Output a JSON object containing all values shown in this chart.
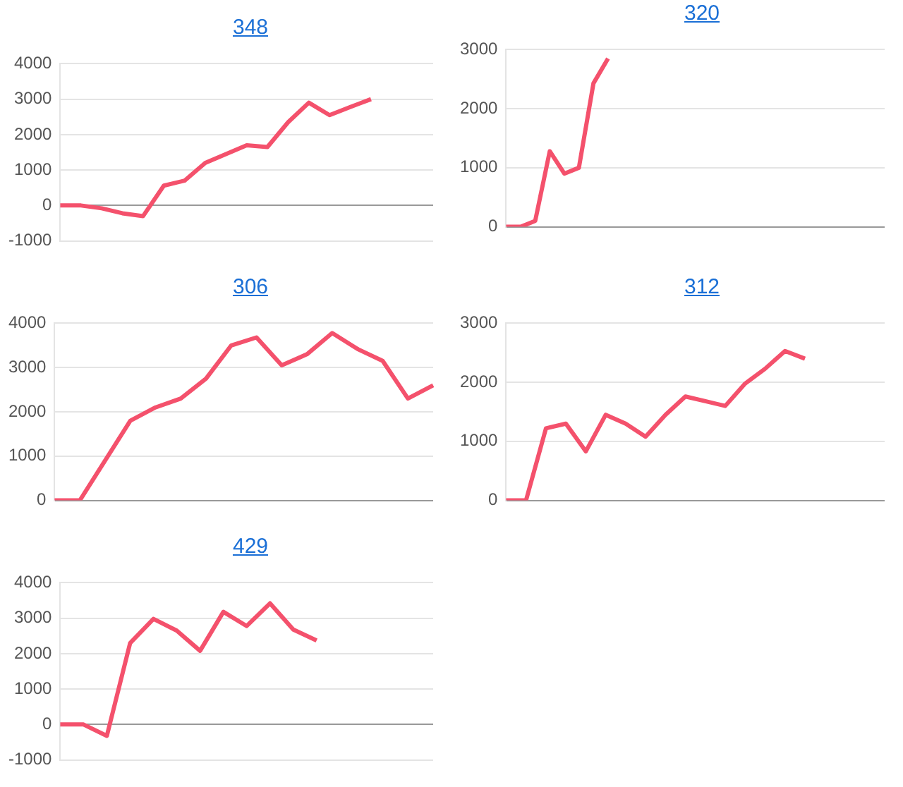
{
  "chart_data": [
    {
      "type": "line",
      "title": "348",
      "categories": [
        null,
        null,
        null,
        null,
        null,
        null,
        null,
        null,
        null,
        null,
        null,
        null,
        null,
        null,
        null,
        null,
        null,
        null,
        null
      ],
      "values": [
        0,
        0,
        -80,
        -220,
        -300,
        560,
        700,
        1200,
        1450,
        1700,
        1650,
        2350,
        2900,
        2550,
        2780,
        3000,
        null,
        null,
        null
      ],
      "color": "#f4516c",
      "ylim": [
        -1000,
        4000
      ],
      "yticks": [
        -1000,
        0,
        1000,
        2000,
        3000,
        4000
      ],
      "grid": "y",
      "tick_labels": "y",
      "marker": "none",
      "legend": false
    },
    {
      "type": "line",
      "title": "320",
      "categories": [
        null,
        null,
        null,
        null,
        null,
        null,
        null,
        null,
        null,
        null,
        null,
        null,
        null,
        null,
        null,
        null,
        null,
        null,
        null,
        null,
        null,
        null,
        null,
        null,
        null,
        null,
        null
      ],
      "values": [
        0,
        0,
        100,
        1280,
        900,
        1000,
        2430,
        2850,
        null,
        null,
        null,
        null,
        null,
        null,
        null,
        null,
        null,
        null,
        null,
        null,
        null,
        null,
        null,
        null,
        null,
        null,
        null
      ],
      "color": "#f4516c",
      "ylim": [
        0,
        3000
      ],
      "yticks": [
        0,
        1000,
        2000,
        3000
      ],
      "grid": "y",
      "tick_labels": "y",
      "marker": "none",
      "legend": false
    },
    {
      "type": "line",
      "title": "306",
      "categories": [
        null,
        null,
        null,
        null,
        null,
        null,
        null,
        null,
        null,
        null,
        null,
        null,
        null,
        null,
        null,
        null
      ],
      "values": [
        0,
        0,
        900,
        1800,
        2100,
        2300,
        2750,
        3500,
        3680,
        3050,
        3300,
        3780,
        3420,
        3150,
        2300,
        2600
      ],
      "color": "#f4516c",
      "ylim": [
        0,
        4000
      ],
      "yticks": [
        0,
        1000,
        2000,
        3000,
        4000
      ],
      "grid": "y",
      "tick_labels": "y",
      "marker": "none",
      "legend": false
    },
    {
      "type": "line",
      "title": "312",
      "categories": [
        null,
        null,
        null,
        null,
        null,
        null,
        null,
        null,
        null,
        null,
        null,
        null,
        null,
        null,
        null,
        null,
        null,
        null,
        null,
        null
      ],
      "values": [
        0,
        0,
        1220,
        1300,
        830,
        1450,
        1300,
        1080,
        1450,
        1760,
        1680,
        1600,
        1980,
        2230,
        2530,
        2400,
        null,
        null,
        null,
        null
      ],
      "color": "#f4516c",
      "ylim": [
        0,
        3000
      ],
      "yticks": [
        0,
        1000,
        2000,
        3000
      ],
      "grid": "y",
      "tick_labels": "y",
      "marker": "none",
      "legend": false
    },
    {
      "type": "line",
      "title": "429",
      "categories": [
        null,
        null,
        null,
        null,
        null,
        null,
        null,
        null,
        null,
        null,
        null,
        null,
        null,
        null,
        null,
        null,
        null
      ],
      "values": [
        0,
        0,
        -320,
        2300,
        2980,
        2650,
        2080,
        3180,
        2780,
        3420,
        2680,
        2370,
        null,
        null,
        null,
        null,
        null
      ],
      "color": "#f4516c",
      "ylim": [
        -1000,
        4000
      ],
      "yticks": [
        -1000,
        0,
        1000,
        2000,
        3000,
        4000
      ],
      "grid": "y",
      "tick_labels": "y",
      "marker": "none",
      "legend": false
    }
  ]
}
